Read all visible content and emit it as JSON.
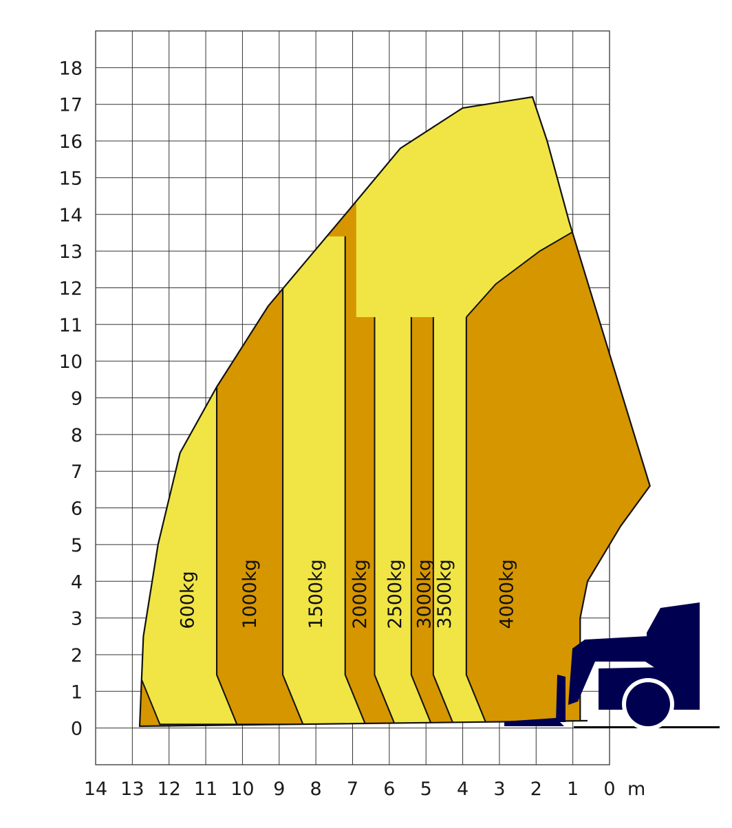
{
  "chart_data": {
    "type": "area",
    "title": "",
    "xlabel": "",
    "ylabel": "",
    "x_unit": "m",
    "x_axis_direction": "reversed",
    "xlim": [
      14,
      0
    ],
    "ylim": [
      -1,
      19
    ],
    "x_ticks": [
      "14",
      "13",
      "12",
      "11",
      "10",
      "9",
      "8",
      "7",
      "6",
      "5",
      "4",
      "3",
      "2",
      "1",
      "0"
    ],
    "y_ticks": [
      "0",
      "1",
      "2",
      "3",
      "4",
      "5",
      "6",
      "7",
      "8",
      "9",
      "10",
      "11",
      "12",
      "13",
      "14",
      "15",
      "16",
      "17",
      "18"
    ],
    "grid": true,
    "colors": {
      "light_zone": "#F0E545",
      "dark_zone": "#D69600",
      "machine": "#000050",
      "outline": "#111111",
      "grid": "#333333"
    },
    "load_zones": [
      {
        "label": "600kg",
        "tone": "light",
        "reach_max": 12.8,
        "reach_mid": 10.7,
        "height_max": 9.3
      },
      {
        "label": "1000kg",
        "tone": "dark",
        "reach_max": 10.7,
        "reach_mid": 8.9,
        "height_max": 12.1
      },
      {
        "label": "1500kg",
        "tone": "light",
        "reach_max": 8.9,
        "reach_mid": 7.2,
        "height_max": 14.0
      },
      {
        "label": "2000kg",
        "tone": "dark",
        "reach_max": 7.2,
        "reach_mid": 6.4,
        "height_max": 14.7
      },
      {
        "label": "2500kg",
        "tone": "light",
        "reach_max": 6.4,
        "reach_mid": 5.4,
        "height_max": 17.2
      },
      {
        "label": "3000kg",
        "tone": "dark",
        "reach_max": 5.4,
        "reach_mid": 4.8,
        "height_max": 15.8
      },
      {
        "label": "3500kg",
        "tone": "light",
        "reach_max": 4.8,
        "reach_mid": 3.9,
        "height_max": 13.7
      },
      {
        "label": "4000kg",
        "tone": "dark",
        "reach_max": 3.9,
        "reach_mid": 0.0,
        "height_max": 11.5
      }
    ],
    "envelope": [
      [
        12.8,
        0.05
      ],
      [
        12.7,
        2.5
      ],
      [
        12.3,
        5.0
      ],
      [
        11.7,
        7.5
      ],
      [
        10.7,
        9.3
      ],
      [
        9.3,
        11.5
      ],
      [
        7.2,
        14.0
      ],
      [
        5.7,
        15.8
      ],
      [
        4.0,
        16.9
      ],
      [
        2.1,
        17.2
      ],
      [
        1.7,
        16.0
      ],
      [
        1.1,
        13.8
      ],
      [
        0.4,
        11.5
      ],
      [
        -1.1,
        6.6
      ],
      [
        -0.3,
        5.5
      ],
      [
        0.6,
        4.0
      ],
      [
        0.8,
        3.0
      ],
      [
        0.8,
        0.2
      ],
      [
        0.6,
        0.2
      ]
    ]
  }
}
